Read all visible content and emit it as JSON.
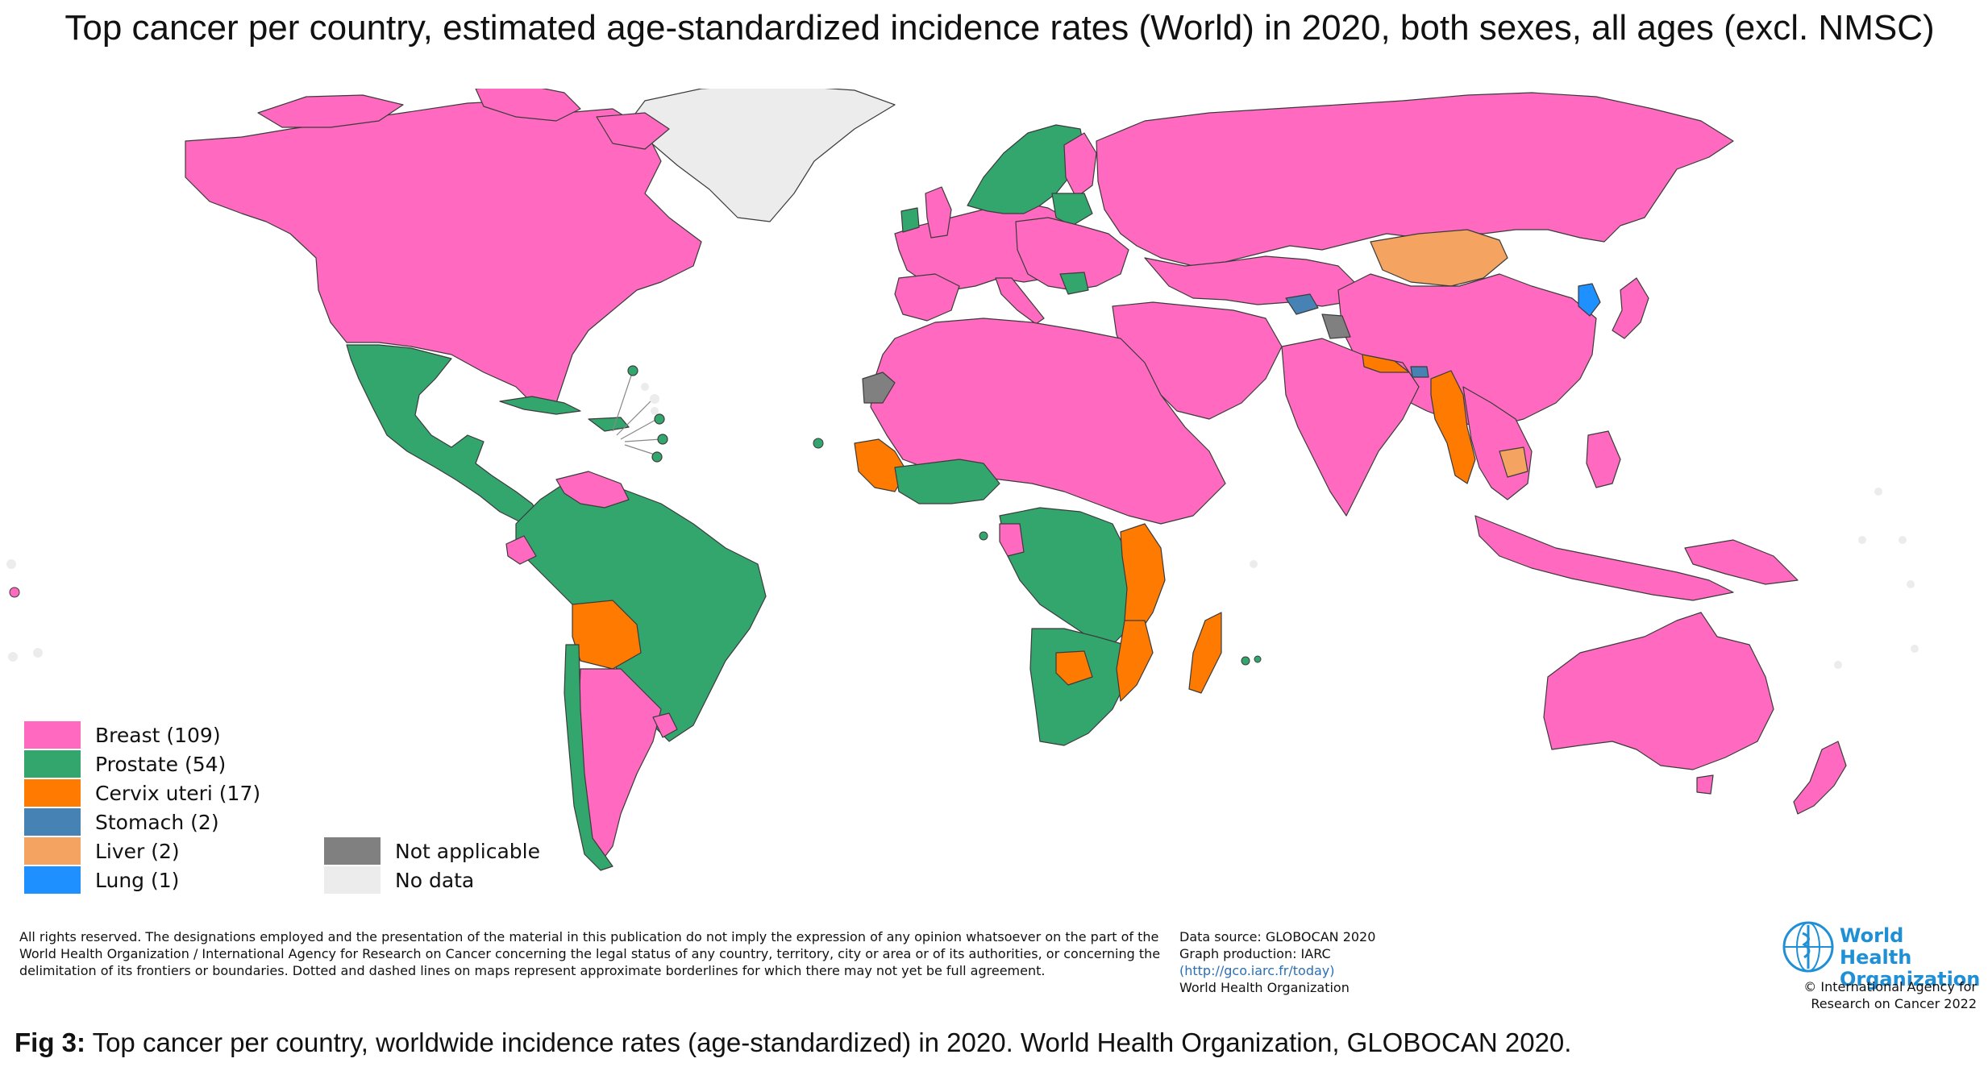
{
  "title": "Top cancer per country, estimated age-standardized incidence rates (World) in 2020, both sexes, all ages (excl. NMSC)",
  "colors": {
    "breast": "#ff69bf",
    "prostate": "#33a66e",
    "cervix": "#ff7a00",
    "stomach": "#4682b4",
    "liver": "#f4a460",
    "lung": "#1e90ff",
    "not_applicable": "#808080",
    "no_data": "#ececec",
    "border": "#3b3b3b"
  },
  "legend": [
    {
      "label": "Breast (109)",
      "color": "#ff69bf"
    },
    {
      "label": "Prostate (54)",
      "color": "#33a66e"
    },
    {
      "label": "Cervix uteri (17)",
      "color": "#ff7a00"
    },
    {
      "label": "Stomach (2)",
      "color": "#4682b4"
    },
    {
      "label": "Liver (2)",
      "color": "#f4a460"
    },
    {
      "label": "Lung (1)",
      "color": "#1e90ff"
    }
  ],
  "legend_extra": [
    {
      "label": "Not applicable",
      "color": "#808080"
    },
    {
      "label": "No data",
      "color": "#ececec"
    }
  ],
  "disclaimer": "All rights reserved. The designations employed and the presentation of the material in this publication do not imply the expression of any opinion whatsoever on the part of the World Health Organization / International Agency for Research on Cancer concerning the legal status of any country, territory, city or area or of its authorities, or concerning the delimitation of its frontiers or boundaries. Dotted and dashed lines on maps represent approximate borderlines for which there may not yet be full agreement.",
  "source": {
    "line1": "Data source: GLOBOCAN 2020",
    "line2": "Graph production: IARC",
    "line3": "(http://gco.iarc.fr/today)",
    "line4": "World Health Organization"
  },
  "who": {
    "name_line1": "World Health",
    "name_line2": "Organization",
    "copyright_line1": "© International Agency for",
    "copyright_line2": "Research on Cancer 2022"
  },
  "caption": {
    "prefix": "Fig 3:",
    "text": " Top cancer per country, worldwide incidence rates (age-standardized) in 2020. World Health Organization, GLOBOCAN 2020."
  }
}
